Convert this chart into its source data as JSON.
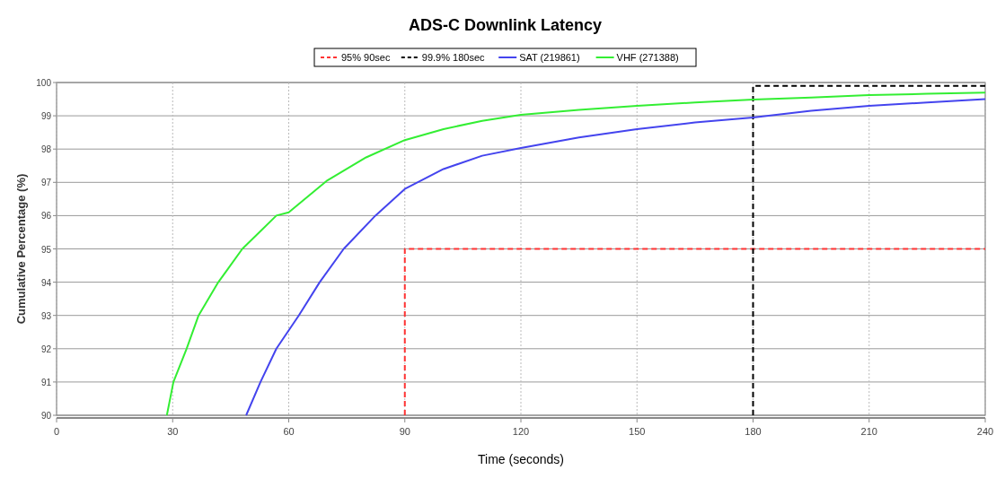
{
  "chart_data": {
    "type": "line",
    "title": "ADS-C Downlink Latency",
    "xlabel": "Time (seconds)",
    "ylabel": "Cumulative Percentage (%)",
    "xlim": [
      0,
      240
    ],
    "xticks": [
      0,
      30,
      60,
      90,
      120,
      150,
      180,
      210,
      240
    ],
    "ylim": [
      90,
      100
    ],
    "yticks": [
      90,
      91,
      92,
      93,
      94,
      95,
      96,
      97,
      98,
      99,
      100
    ],
    "grid": true,
    "legend": "top",
    "marker": "none",
    "series": [
      {
        "name": "95% 90sec",
        "color": "#ff3333",
        "line_style": "dashed",
        "x": [
          90,
          90,
          240
        ],
        "values": [
          90,
          95,
          95
        ]
      },
      {
        "name": "99.9% 180sec",
        "color": "#000000",
        "line_style": "dashed",
        "x": [
          180,
          180,
          240
        ],
        "values": [
          90,
          99.9,
          99.9
        ]
      },
      {
        "name": "SAT (219861)",
        "color": "#4444ee",
        "line_style": "solid",
        "x": [
          49,
          52.7,
          56.8,
          62.6,
          68,
          74.2,
          82.4,
          90,
          100,
          110,
          120,
          135,
          150,
          165,
          180,
          195,
          210,
          225,
          240
        ],
        "values": [
          90,
          91,
          92,
          93,
          94,
          95,
          96,
          96.8,
          97.4,
          97.8,
          98.03,
          98.35,
          98.6,
          98.8,
          98.95,
          99.15,
          99.3,
          99.4,
          99.5
        ]
      },
      {
        "name": "VHF (271388)",
        "color": "#33ee33",
        "line_style": "solid",
        "x": [
          28.5,
          30.2,
          33.6,
          36.7,
          41.8,
          48,
          56.8,
          60,
          70,
          80,
          90,
          100,
          110,
          120,
          135,
          150,
          165,
          180,
          195,
          210,
          225,
          240
        ],
        "values": [
          90,
          91,
          92,
          93,
          94,
          95,
          96,
          96.1,
          97.06,
          97.75,
          98.27,
          98.6,
          98.85,
          99.03,
          99.18,
          99.3,
          99.4,
          99.49,
          99.55,
          99.62,
          99.66,
          99.7
        ]
      }
    ]
  }
}
